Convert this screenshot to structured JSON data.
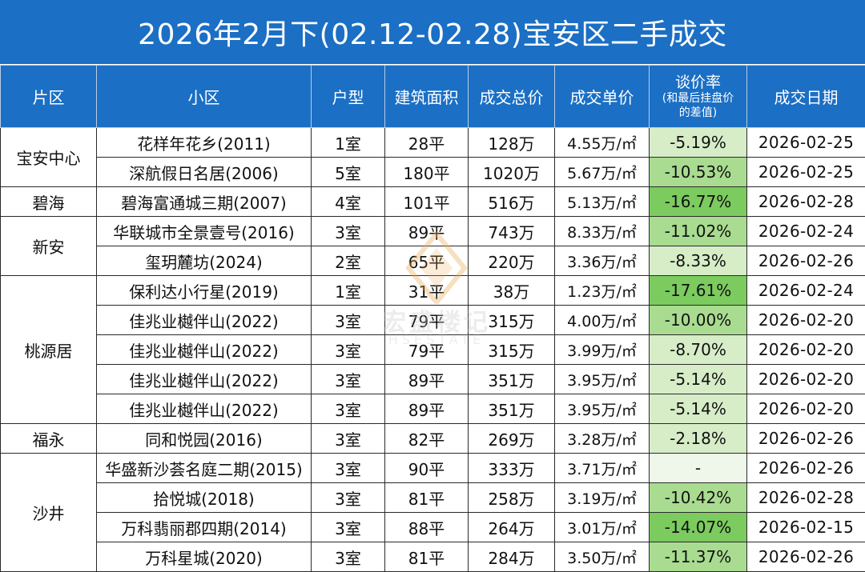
{
  "title": "2026年2月下(02.12-02.28)宝安区二手成交",
  "headers": {
    "district": "片区",
    "community": "小区",
    "layout": "户型",
    "area": "建筑面积",
    "total": "成交总价",
    "unit": "成交单价",
    "rate_main": "谈价率",
    "rate_sub1": "(和最后挂盘价",
    "rate_sub2": "的差值)",
    "date": "成交日期"
  },
  "unit_suffix": "万/㎡",
  "colors": {
    "header_bg": "#1b6fc4",
    "rate_strong": "#7ccb5f",
    "rate_mid": "#a9dc90",
    "rate_light": "#d6edc8",
    "rate_none": "#eef7e9"
  },
  "watermark": {
    "text": "宏盛楼记",
    "sub": "HSESTATE"
  },
  "rows": [
    {
      "district": "宝安中心",
      "span": 2,
      "community": "花样年花乡(2011)",
      "layout": "1室",
      "area": "28平",
      "total": "128万",
      "unit": "4.55",
      "rate": "-5.19%",
      "date": "2026-02-25"
    },
    {
      "community": "深航假日名居(2006)",
      "layout": "5室",
      "area": "180平",
      "total": "1020万",
      "unit": "5.67",
      "rate": "-10.53%",
      "date": "2026-02-25"
    },
    {
      "district": "碧海",
      "span": 1,
      "community": "碧海富通城三期(2007)",
      "layout": "4室",
      "area": "101平",
      "total": "516万",
      "unit": "5.13",
      "rate": "-16.77%",
      "date": "2026-02-28"
    },
    {
      "district": "新安",
      "span": 2,
      "community": "华联城市全景壹号(2016)",
      "layout": "3室",
      "area": "89平",
      "total": "743万",
      "unit": "8.33",
      "rate": "-11.02%",
      "date": "2026-02-24"
    },
    {
      "community": "玺玥麓坊(2024)",
      "layout": "2室",
      "area": "65平",
      "total": "220万",
      "unit": "3.36",
      "rate": "-8.33%",
      "date": "2026-02-26"
    },
    {
      "district": "桃源居",
      "span": 5,
      "community": "保利达小行星(2019)",
      "layout": "1室",
      "area": "31平",
      "total": "38万",
      "unit": "1.23",
      "rate": "-17.61%",
      "date": "2026-02-24"
    },
    {
      "community": "佳兆业樾伴山(2022)",
      "layout": "3室",
      "area": "79平",
      "total": "315万",
      "unit": "4.00",
      "rate": "-10.00%",
      "date": "2026-02-20"
    },
    {
      "community": "佳兆业樾伴山(2022)",
      "layout": "3室",
      "area": "79平",
      "total": "315万",
      "unit": "3.99",
      "rate": "-8.70%",
      "date": "2026-02-20"
    },
    {
      "community": "佳兆业樾伴山(2022)",
      "layout": "3室",
      "area": "89平",
      "total": "351万",
      "unit": "3.95",
      "rate": "-5.14%",
      "date": "2026-02-20"
    },
    {
      "community": "佳兆业樾伴山(2022)",
      "layout": "3室",
      "area": "89平",
      "total": "351万",
      "unit": "3.95",
      "rate": "-5.14%",
      "date": "2026-02-20"
    },
    {
      "district": "福永",
      "span": 1,
      "community": "同和悦园(2016)",
      "layout": "3室",
      "area": "82平",
      "total": "269万",
      "unit": "3.28",
      "rate": "-2.18%",
      "date": "2026-02-26"
    },
    {
      "district": "沙井",
      "span": 4,
      "community": "华盛新沙荟名庭二期(2015)",
      "layout": "3室",
      "area": "90平",
      "total": "333万",
      "unit": "3.71",
      "rate": "-",
      "date": "2026-02-26"
    },
    {
      "community": "拾悦城(2018)",
      "layout": "3室",
      "area": "81平",
      "total": "258万",
      "unit": "3.19",
      "rate": "-10.42%",
      "date": "2026-02-28"
    },
    {
      "community": "万科翡丽郡四期(2014)",
      "layout": "3室",
      "area": "88平",
      "total": "264万",
      "unit": "3.01",
      "rate": "-14.07%",
      "date": "2026-02-15"
    },
    {
      "community": "万科星城(2020)",
      "layout": "3室",
      "area": "81平",
      "total": "284万",
      "unit": "3.50",
      "rate": "-11.37%",
      "date": "2026-02-26"
    }
  ]
}
